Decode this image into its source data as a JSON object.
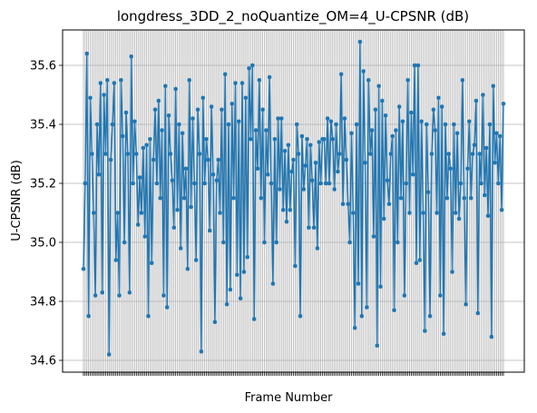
{
  "chart_data": {
    "type": "line",
    "title": "longdress_3DD_2_noQuantize_OM=4_U-CPSNR (dB)",
    "xlabel": "Frame Number",
    "ylabel": "U-CPSNR (dB)",
    "ylim": [
      34.56,
      35.72
    ],
    "yticks": [
      "34.6",
      "34.8",
      "35.0",
      "35.2",
      "35.4",
      "35.6"
    ],
    "grid": true,
    "line_color": "#1f77b4",
    "series": [
      {
        "values": [
          34.91,
          35.2,
          35.64,
          34.75,
          35.49,
          35.3,
          35.1,
          34.82,
          35.4,
          35.23,
          35.54,
          34.83,
          35.5,
          35.3,
          35.55,
          34.62,
          35.28,
          35.4,
          35.54,
          34.94,
          35.1,
          34.82,
          35.55,
          35.36,
          35.0,
          35.44,
          35.3,
          34.83,
          35.63,
          35.2,
          35.41,
          35.3,
          35.06,
          35.22,
          35.1,
          35.32,
          35.02,
          35.33,
          34.75,
          35.35,
          34.93,
          35.28,
          35.45,
          35.2,
          35.48,
          35.15,
          35.38,
          34.82,
          35.53,
          34.78,
          35.43,
          35.3,
          35.21,
          35.05,
          35.52,
          35.11,
          35.4,
          34.98,
          35.37,
          35.15,
          35.25,
          34.91,
          35.55,
          35.12,
          35.42,
          35.2,
          34.94,
          35.45,
          35.3,
          34.63,
          35.49,
          35.2,
          35.35,
          35.28,
          35.04,
          35.46,
          35.23,
          34.73,
          35.21,
          35.28,
          35.1,
          35.45,
          35.0,
          35.57,
          34.79,
          35.4,
          34.84,
          35.47,
          35.15,
          35.54,
          34.89,
          35.41,
          34.81,
          35.54,
          34.9,
          35.49,
          34.95,
          35.59,
          35.35,
          35.6,
          34.74,
          35.38,
          35.25,
          35.55,
          35.15,
          35.45,
          35.0,
          35.38,
          35.23,
          35.56,
          35.2,
          34.86,
          35.35,
          35.0,
          35.42,
          35.18,
          35.42,
          35.11,
          35.31,
          35.07,
          35.33,
          35.11,
          35.24,
          35.28,
          34.92,
          35.4,
          35.3,
          34.75,
          35.36,
          35.18,
          35.26,
          35.35,
          35.05,
          35.33,
          35.21,
          35.05,
          35.27,
          34.98,
          35.34,
          35.2,
          35.35,
          35.35,
          35.2,
          35.42,
          35.2,
          35.41,
          35.35,
          35.18,
          35.4,
          35.24,
          35.3,
          35.57,
          35.13,
          35.42,
          35.28,
          35.13,
          35.0,
          35.37,
          35.1,
          34.71,
          35.4,
          34.86,
          35.68,
          34.75,
          35.58,
          35.27,
          34.78,
          35.55,
          35.3,
          35.38,
          35.02,
          35.45,
          34.65,
          35.53,
          34.85,
          35.48,
          35.08,
          35.43,
          35.21,
          35.13,
          35.3,
          35.36,
          34.77,
          35.38,
          35.0,
          35.46,
          35.15,
          35.41,
          34.82,
          35.2,
          35.55,
          35.1,
          35.44,
          35.23,
          35.6,
          34.93,
          35.6,
          34.94,
          35.41,
          35.1,
          34.7,
          35.4,
          35.17,
          34.75,
          35.3,
          35.45,
          35.38,
          35.1,
          35.49,
          34.82,
          35.46,
          34.69,
          35.4,
          35.15,
          35.3,
          35.25,
          34.9,
          35.4,
          35.1,
          35.37,
          35.08,
          35.2,
          35.55,
          35.15,
          34.79,
          35.25,
          35.41,
          35.15,
          35.3,
          35.33,
          35.48,
          34.76,
          35.3,
          35.2,
          35.5,
          35.16,
          35.32,
          35.09,
          35.4,
          34.68,
          35.53,
          35.27,
          35.37,
          35.2,
          35.36,
          35.11,
          35.47
        ]
      }
    ]
  }
}
